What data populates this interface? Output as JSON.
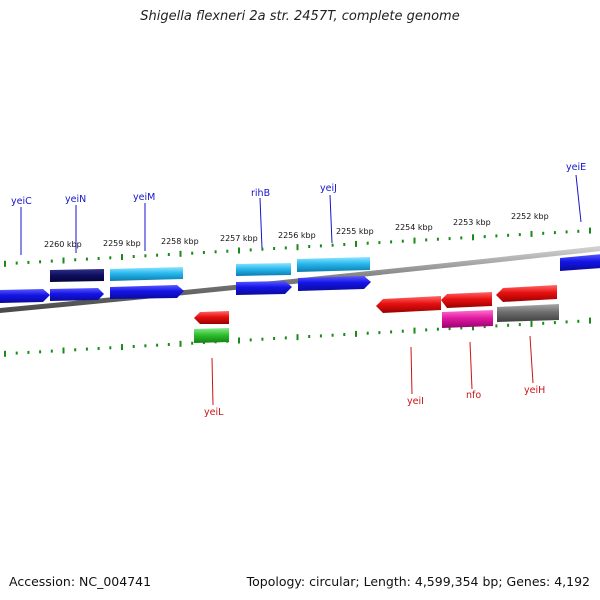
{
  "title": "Shigella flexneri 2a str. 2457T, complete genome",
  "accession": "Accession: NC_004741",
  "summary": "Topology: circular; Length: 4,599,354 bp; Genes: 4,192",
  "ruler": {
    "labels": [
      "2260 kbp",
      "2259 kbp",
      "2258 kbp",
      "2257 kbp",
      "2256 kbp",
      "2255 kbp",
      "2254 kbp",
      "2253 kbp",
      "2252 kbp"
    ]
  },
  "genes": [
    {
      "name": "yeiC",
      "strand": "forward",
      "color": "#1f1fcc"
    },
    {
      "name": "yeiN",
      "strand": "forward",
      "color": "#1f1fcc"
    },
    {
      "name": "yeiM",
      "strand": "forward",
      "color": "#1f1fcc"
    },
    {
      "name": "rihB",
      "strand": "forward",
      "color": "#1f1fcc"
    },
    {
      "name": "yeiJ",
      "strand": "forward",
      "color": "#1f1fcc"
    },
    {
      "name": "yeiE",
      "strand": "forward",
      "color": "#1f1fcc"
    },
    {
      "name": "yeiL",
      "strand": "reverse",
      "color": "#cc1f1f"
    },
    {
      "name": "yeiI",
      "strand": "reverse",
      "color": "#cc1f1f"
    },
    {
      "name": "nfo",
      "strand": "reverse",
      "color": "#cc1f1f"
    },
    {
      "name": "yeiH",
      "strand": "reverse",
      "color": "#cc1f1f"
    }
  ],
  "colors": {
    "forward_cds": "#1414e0",
    "reverse_cds": "#e01414",
    "tick": "#1a8a1a",
    "backbone": "#888888"
  }
}
